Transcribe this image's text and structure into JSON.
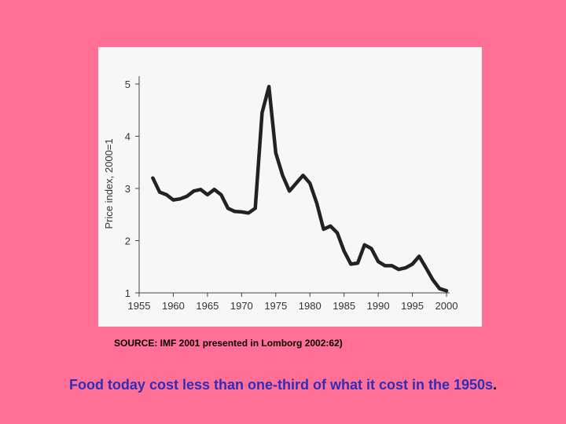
{
  "chart_data": {
    "type": "line",
    "ylabel": "Price index, 2000=1",
    "xlabel": "",
    "xlim": [
      1955,
      2000
    ],
    "ylim": [
      1,
      5
    ],
    "xticks": [
      1955,
      1960,
      1965,
      1970,
      1975,
      1980,
      1985,
      1990,
      1995,
      2000
    ],
    "yticks": [
      1,
      2,
      3,
      4,
      5
    ],
    "grid": false,
    "line_color": "#222222",
    "series": [
      {
        "x": [
          1957,
          1958,
          1959,
          1960,
          1961,
          1962,
          1963,
          1964,
          1965,
          1966,
          1967,
          1968,
          1969,
          1970,
          1971,
          1972,
          1973,
          1974,
          1975,
          1976,
          1977,
          1978,
          1979,
          1980,
          1981,
          1982,
          1983,
          1984,
          1985,
          1986,
          1987,
          1988,
          1989,
          1990,
          1991,
          1992,
          1993,
          1994,
          1995,
          1996,
          1997,
          1998,
          1999,
          2000
        ],
        "y": [
          3.2,
          2.93,
          2.88,
          2.78,
          2.8,
          2.85,
          2.95,
          2.98,
          2.88,
          2.98,
          2.88,
          2.62,
          2.56,
          2.55,
          2.53,
          2.62,
          4.45,
          4.95,
          3.68,
          3.25,
          2.95,
          3.1,
          3.25,
          3.1,
          2.72,
          2.22,
          2.28,
          2.15,
          1.8,
          1.55,
          1.57,
          1.92,
          1.85,
          1.6,
          1.52,
          1.52,
          1.45,
          1.48,
          1.55,
          1.7,
          1.48,
          1.25,
          1.08,
          1.04
        ]
      }
    ]
  },
  "source_note": "SOURCE: IMF 2001 presented in Lomborg 2002:62)",
  "caption": {
    "text": "Food today cost less than one-third of what it cost in the 1950s",
    "period": "."
  }
}
